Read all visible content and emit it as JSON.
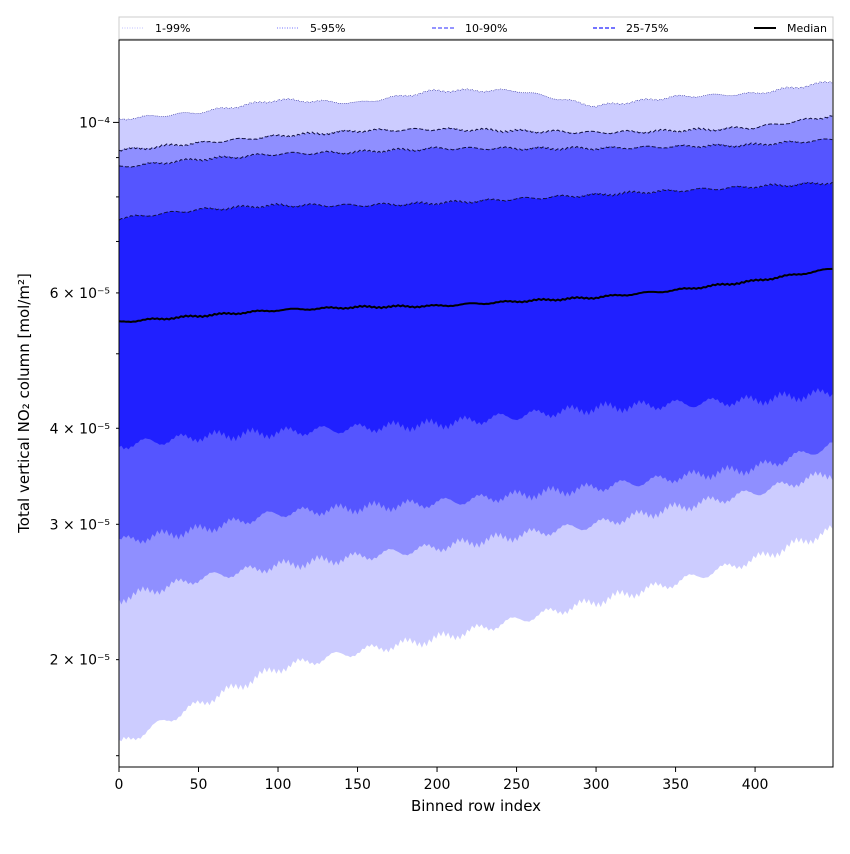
{
  "chart_data": {
    "type": "area",
    "xlabel": "Binned row index",
    "ylabel": "Total vertical NO₂ column [mol/m²]",
    "y_scale": "log",
    "xlim": [
      0,
      449
    ],
    "ylim": [
      1.45e-05,
      0.000128
    ],
    "grid": false,
    "x_ticks": [
      0,
      50,
      100,
      150,
      200,
      250,
      300,
      350,
      400
    ],
    "x_tick_labels": [
      "0",
      "50",
      "100",
      "150",
      "200",
      "250",
      "300",
      "350",
      "400"
    ],
    "y_major_ticks": [
      0.0001
    ],
    "y_major_tick_labels": [
      "10⁻⁴"
    ],
    "y_minor_ticks": [
      2e-05,
      3e-05,
      4e-05,
      6e-05
    ],
    "y_minor_tick_labels": [
      "2 × 10⁻⁵",
      "3 × 10⁻⁵",
      "4 × 10⁻⁵",
      "6 × 10⁻⁵"
    ],
    "legend_position": "top, spanning full width",
    "legend": [
      {
        "label": "1-99%",
        "color": "#ccccff",
        "style": "dotted"
      },
      {
        "label": "5-95%",
        "color": "#8f8fff",
        "style": "dotted"
      },
      {
        "label": "10-90%",
        "color": "#5555ff",
        "style": "dashed"
      },
      {
        "label": "25-75%",
        "color": "#2020ff",
        "style": "dashed"
      },
      {
        "label": "Median",
        "color": "#000000",
        "style": "solid"
      }
    ],
    "x": [
      0,
      50,
      100,
      150,
      200,
      250,
      300,
      350,
      400,
      449
    ],
    "bands": [
      {
        "label": "1-99%",
        "color": "#ccccff",
        "lower": [
          1.55e-05,
          1.75e-05,
          1.95e-05,
          2.05e-05,
          2.13e-05,
          2.25e-05,
          2.38e-05,
          2.52e-05,
          2.7e-05,
          2.95e-05
        ],
        "upper": [
          0.000101,
          0.000103,
          0.000107,
          0.000106,
          0.00011,
          0.00011,
          0.000105,
          0.000108,
          0.000109,
          0.000113
        ]
      },
      {
        "label": "5-95%",
        "color": "#8f8fff",
        "lower": [
          2.4e-05,
          2.55e-05,
          2.65e-05,
          2.72e-05,
          2.8e-05,
          2.9e-05,
          3e-05,
          3.15e-05,
          3.3e-05,
          3.5e-05
        ],
        "upper": [
          9.2e-05,
          9.4e-05,
          9.6e-05,
          9.75e-05,
          9.8e-05,
          9.75e-05,
          9.7e-05,
          9.75e-05,
          9.85e-05,
          0.000102
        ]
      },
      {
        "label": "10-90%",
        "color": "#5555ff",
        "lower": [
          2.85e-05,
          2.95e-05,
          3.1e-05,
          3.15e-05,
          3.2e-05,
          3.27e-05,
          3.35e-05,
          3.45e-05,
          3.55e-05,
          3.8e-05
        ],
        "upper": [
          8.75e-05,
          8.95e-05,
          9.1e-05,
          9.15e-05,
          9.25e-05,
          9.25e-05,
          9.25e-05,
          9.3e-05,
          9.35e-05,
          9.5e-05
        ]
      },
      {
        "label": "25-75%",
        "color": "#2020ff",
        "lower": [
          3.8e-05,
          3.9e-05,
          3.95e-05,
          4e-05,
          4.05e-05,
          4.15e-05,
          4.25e-05,
          4.3e-05,
          4.35e-05,
          4.45e-05
        ],
        "upper": [
          7.5e-05,
          7.7e-05,
          7.8e-05,
          7.8e-05,
          7.85e-05,
          7.95e-05,
          8.05e-05,
          8.15e-05,
          8.25e-05,
          8.35e-05
        ]
      }
    ],
    "median": {
      "label": "Median",
      "color": "#000000",
      "values": [
        5.5e-05,
        5.6e-05,
        5.7e-05,
        5.75e-05,
        5.77e-05,
        5.85e-05,
        5.92e-05,
        6.05e-05,
        6.22e-05,
        6.45e-05
      ]
    }
  }
}
